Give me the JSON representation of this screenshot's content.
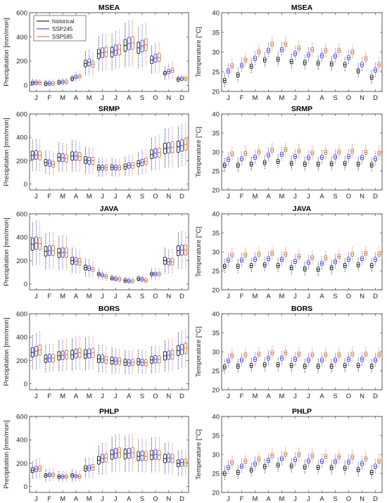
{
  "chart_data": [
    {
      "type": "box",
      "title": "MSEA",
      "ylabel": "Precipitation [mm/mon]",
      "ylim": [
        -50,
        600
      ],
      "yticks": [
        0,
        200,
        400,
        600
      ],
      "categories": [
        "J",
        "F",
        "M",
        "A",
        "M",
        "J",
        "J",
        "A",
        "S",
        "O",
        "N",
        "D"
      ],
      "series": [
        {
          "name": "historical",
          "color": "#000000",
          "medians": [
            20,
            15,
            25,
            55,
            180,
            260,
            275,
            330,
            310,
            210,
            100,
            50
          ]
        },
        {
          "name": "SSP245",
          "color": "#2a2aff",
          "medians": [
            22,
            16,
            28,
            70,
            190,
            270,
            290,
            345,
            325,
            225,
            115,
            55
          ]
        },
        {
          "name": "SSP585",
          "color": "#c8642a",
          "medians": [
            22,
            16,
            30,
            75,
            175,
            275,
            295,
            350,
            335,
            230,
            125,
            55
          ]
        }
      ],
      "legend": [
        "historical",
        "SSP245",
        "SSP585"
      ]
    },
    {
      "type": "box",
      "title": "MSEA",
      "ylabel": "Temperature [°C]",
      "ylim": [
        20,
        40
      ],
      "yticks": [
        20,
        25,
        30,
        35,
        40
      ],
      "categories": [
        "J",
        "F",
        "M",
        "A",
        "M",
        "J",
        "J",
        "A",
        "S",
        "O",
        "N",
        "D"
      ],
      "series": [
        {
          "name": "historical",
          "color": "#000000",
          "medians": [
            22.8,
            24.2,
            26.4,
            28.0,
            28.2,
            27.6,
            27.3,
            27.2,
            27.0,
            26.8,
            25.2,
            23.6
          ]
        },
        {
          "name": "SSP245",
          "color": "#2a2aff",
          "medians": [
            25.2,
            26.6,
            28.4,
            30.4,
            30.6,
            29.6,
            29.3,
            29.1,
            29.0,
            28.6,
            26.8,
            25.4
          ]
        },
        {
          "name": "SSP585",
          "color": "#c8642a",
          "medians": [
            26.5,
            28.0,
            30.0,
            32.0,
            32.0,
            31.0,
            30.6,
            30.4,
            30.4,
            30.0,
            28.4,
            26.8
          ]
        }
      ]
    },
    {
      "type": "box",
      "title": "SRMP",
      "ylabel": "Precipitation [mm/mon]",
      "ylim": [
        -50,
        600
      ],
      "yticks": [
        0,
        200,
        400,
        600
      ],
      "categories": [
        "J",
        "F",
        "M",
        "A",
        "M",
        "J",
        "J",
        "A",
        "S",
        "O",
        "N",
        "D"
      ],
      "series": [
        {
          "name": "historical",
          "color": "#000000",
          "medians": [
            245,
            185,
            230,
            240,
            205,
            140,
            145,
            150,
            175,
            255,
            305,
            320
          ]
        },
        {
          "name": "SSP245",
          "color": "#2a2aff",
          "medians": [
            250,
            180,
            225,
            240,
            200,
            140,
            140,
            160,
            185,
            265,
            310,
            330
          ]
        },
        {
          "name": "SSP585",
          "color": "#c8642a",
          "medians": [
            245,
            170,
            220,
            235,
            200,
            140,
            140,
            160,
            195,
            270,
            315,
            340
          ]
        }
      ]
    },
    {
      "type": "box",
      "title": "SRMP",
      "ylabel": "Temperature [°C]",
      "ylim": [
        20,
        40
      ],
      "yticks": [
        20,
        25,
        30,
        35,
        40
      ],
      "categories": [
        "J",
        "F",
        "M",
        "A",
        "M",
        "J",
        "J",
        "A",
        "S",
        "O",
        "N",
        "D"
      ],
      "series": [
        {
          "name": "historical",
          "color": "#000000",
          "medians": [
            26.5,
            26.5,
            26.8,
            27.2,
            27.5,
            27.0,
            26.8,
            26.8,
            26.9,
            27.0,
            26.8,
            26.6
          ]
        },
        {
          "name": "SSP245",
          "color": "#2a2aff",
          "medians": [
            28.0,
            28.2,
            28.6,
            29.2,
            29.4,
            28.8,
            28.5,
            28.6,
            28.7,
            28.8,
            28.5,
            28.2
          ]
        },
        {
          "name": "SSP585",
          "color": "#c8642a",
          "medians": [
            29.5,
            29.6,
            30.0,
            30.5,
            30.6,
            30.2,
            29.8,
            29.9,
            30.0,
            30.2,
            29.9,
            29.6
          ]
        }
      ]
    },
    {
      "type": "box",
      "title": "JAVA",
      "ylabel": "Precipitation [mm/mon]",
      "ylim": [
        -50,
        600
      ],
      "yticks": [
        0,
        200,
        400,
        600
      ],
      "categories": [
        "J",
        "F",
        "M",
        "A",
        "M",
        "J",
        "J",
        "A",
        "S",
        "O",
        "N",
        "D"
      ],
      "series": [
        {
          "name": "historical",
          "color": "#000000",
          "medians": [
            340,
            280,
            265,
            200,
            140,
            85,
            50,
            30,
            45,
            85,
            200,
            285
          ]
        },
        {
          "name": "SSP245",
          "color": "#2a2aff",
          "medians": [
            350,
            285,
            270,
            195,
            135,
            75,
            45,
            25,
            40,
            85,
            190,
            290
          ]
        },
        {
          "name": "SSP585",
          "color": "#c8642a",
          "medians": [
            345,
            285,
            270,
            190,
            125,
            65,
            40,
            25,
            30,
            85,
            190,
            290
          ]
        }
      ]
    },
    {
      "type": "box",
      "title": "JAVA",
      "ylabel": "Temperature [°C]",
      "ylim": [
        20,
        40
      ],
      "yticks": [
        20,
        25,
        30,
        35,
        40
      ],
      "categories": [
        "J",
        "F",
        "M",
        "A",
        "M",
        "J",
        "J",
        "A",
        "S",
        "O",
        "N",
        "D"
      ],
      "series": [
        {
          "name": "historical",
          "color": "#000000",
          "medians": [
            26.2,
            26.2,
            26.4,
            26.6,
            26.4,
            25.8,
            25.5,
            25.4,
            25.8,
            26.4,
            26.6,
            26.4
          ]
        },
        {
          "name": "SSP245",
          "color": "#2a2aff",
          "medians": [
            27.8,
            27.8,
            28.0,
            28.2,
            28.0,
            27.5,
            27.2,
            27.0,
            27.4,
            28.0,
            28.2,
            28.0
          ]
        },
        {
          "name": "SSP585",
          "color": "#c8642a",
          "medians": [
            29.2,
            29.2,
            29.4,
            29.6,
            29.4,
            28.8,
            28.5,
            28.4,
            28.8,
            29.4,
            29.6,
            29.4
          ]
        }
      ]
    },
    {
      "type": "box",
      "title": "BORS",
      "ylabel": "Precipitation [mm/mon]",
      "ylim": [
        -50,
        600
      ],
      "yticks": [
        0,
        200,
        400,
        600
      ],
      "categories": [
        "J",
        "F",
        "M",
        "A",
        "M",
        "J",
        "J",
        "A",
        "S",
        "O",
        "N",
        "D"
      ],
      "series": [
        {
          "name": "historical",
          "color": "#000000",
          "medians": [
            270,
            215,
            240,
            250,
            255,
            215,
            200,
            185,
            190,
            205,
            240,
            285
          ]
        },
        {
          "name": "SSP245",
          "color": "#2a2aff",
          "medians": [
            280,
            220,
            245,
            260,
            260,
            215,
            195,
            180,
            185,
            210,
            245,
            295
          ]
        },
        {
          "name": "SSP585",
          "color": "#c8642a",
          "medians": [
            290,
            220,
            250,
            265,
            265,
            205,
            195,
            185,
            180,
            210,
            250,
            305
          ]
        }
      ]
    },
    {
      "type": "box",
      "title": "BORS",
      "ylabel": "Temperature [°C]",
      "ylim": [
        20,
        40
      ],
      "yticks": [
        20,
        25,
        30,
        35,
        40
      ],
      "categories": [
        "J",
        "F",
        "M",
        "A",
        "M",
        "J",
        "J",
        "A",
        "S",
        "O",
        "N",
        "D"
      ],
      "series": [
        {
          "name": "historical",
          "color": "#000000",
          "medians": [
            26.0,
            26.2,
            26.4,
            26.6,
            26.6,
            26.4,
            26.2,
            26.2,
            26.2,
            26.4,
            26.4,
            26.2
          ]
        },
        {
          "name": "SSP245",
          "color": "#2a2aff",
          "medians": [
            27.6,
            27.8,
            28.0,
            28.3,
            28.3,
            28.0,
            27.8,
            27.8,
            27.8,
            28.0,
            28.0,
            27.8
          ]
        },
        {
          "name": "SSP585",
          "color": "#c8642a",
          "medians": [
            29.0,
            29.2,
            29.4,
            29.7,
            29.7,
            29.4,
            29.2,
            29.2,
            29.2,
            29.4,
            29.4,
            29.2
          ]
        }
      ]
    },
    {
      "type": "box",
      "title": "PHLP",
      "ylabel": "Precipitation [mm/mon]",
      "ylim": [
        -50,
        600
      ],
      "yticks": [
        0,
        200,
        400,
        600
      ],
      "categories": [
        "J",
        "F",
        "M",
        "A",
        "M",
        "J",
        "J",
        "A",
        "S",
        "O",
        "N",
        "D"
      ],
      "series": [
        {
          "name": "historical",
          "color": "#000000",
          "medians": [
            140,
            95,
            85,
            95,
            155,
            225,
            275,
            280,
            260,
            270,
            240,
            200
          ]
        },
        {
          "name": "SSP245",
          "color": "#2a2aff",
          "medians": [
            150,
            100,
            85,
            90,
            160,
            240,
            285,
            285,
            265,
            275,
            245,
            205
          ]
        },
        {
          "name": "SSP585",
          "color": "#c8642a",
          "medians": [
            155,
            100,
            85,
            85,
            165,
            245,
            290,
            290,
            260,
            270,
            240,
            205
          ]
        }
      ]
    },
    {
      "type": "box",
      "title": "PHLP",
      "ylabel": "Temperature [°C]",
      "ylim": [
        20,
        40
      ],
      "yticks": [
        20,
        25,
        30,
        35,
        40
      ],
      "categories": [
        "J",
        "F",
        "M",
        "A",
        "M",
        "J",
        "J",
        "A",
        "S",
        "O",
        "N",
        "D"
      ],
      "series": [
        {
          "name": "historical",
          "color": "#000000",
          "medians": [
            25.0,
            25.3,
            25.9,
            26.8,
            27.2,
            27.0,
            26.7,
            26.6,
            26.5,
            26.4,
            26.0,
            25.3
          ]
        },
        {
          "name": "SSP245",
          "color": "#2a2aff",
          "medians": [
            26.6,
            26.9,
            27.5,
            28.4,
            28.9,
            28.6,
            28.3,
            28.2,
            28.1,
            28.0,
            27.6,
            26.9
          ]
        },
        {
          "name": "SSP585",
          "color": "#c8642a",
          "medians": [
            27.9,
            28.2,
            28.8,
            29.7,
            30.1,
            29.9,
            29.6,
            29.5,
            29.4,
            29.3,
            28.9,
            28.2
          ]
        }
      ]
    }
  ]
}
